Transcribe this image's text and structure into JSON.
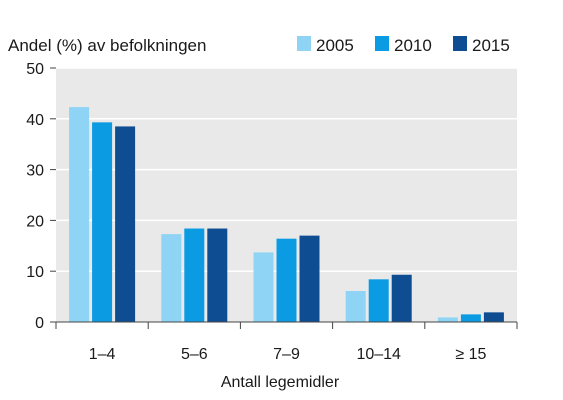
{
  "chart_data": {
    "type": "bar",
    "title": "",
    "ylabel": "Andel (%) av befolkningen",
    "xlabel": "Antall legemidler",
    "ylim": [
      0,
      50
    ],
    "yticks": [
      0,
      10,
      20,
      30,
      40,
      50
    ],
    "grid": true,
    "legend_position": "top-right",
    "categories": [
      "1–4",
      "5–6",
      "7–9",
      "10–14",
      "≥ 15"
    ],
    "series": [
      {
        "name": "2005",
        "color": "#8fd4f5",
        "values": [
          42.3,
          17.3,
          13.7,
          6.1,
          0.9
        ]
      },
      {
        "name": "2010",
        "color": "#0a9be3",
        "values": [
          39.3,
          18.4,
          16.4,
          8.4,
          1.5
        ]
      },
      {
        "name": "2015",
        "color": "#0f4d92",
        "values": [
          38.5,
          18.4,
          17.0,
          9.3,
          1.9
        ]
      }
    ],
    "plot_background": "#e9e9e9",
    "gridline_color": "#ffffff"
  }
}
